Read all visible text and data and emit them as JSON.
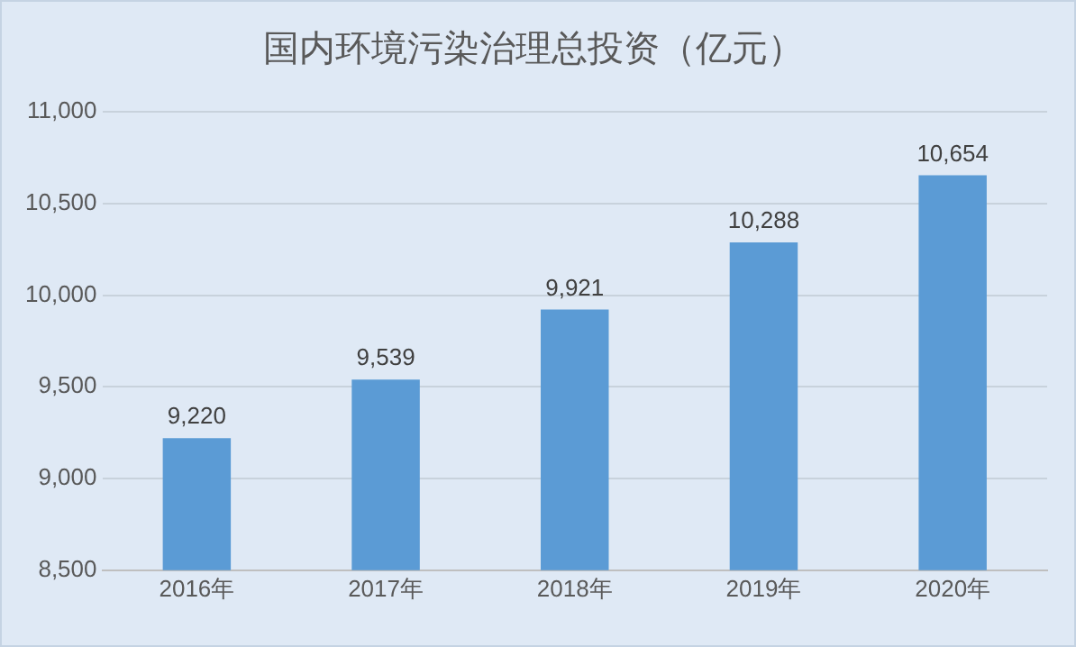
{
  "chart_data": {
    "type": "bar",
    "title": "国内环境污染治理总投资（亿元）",
    "categories": [
      "2016年",
      "2017年",
      "2018年",
      "2019年",
      "2020年"
    ],
    "values": [
      9220,
      9539,
      9921,
      10288,
      10654
    ],
    "value_labels": [
      "9,220",
      "9,539",
      "9,921",
      "10,288",
      "10,654"
    ],
    "color": "#5b9bd5",
    "ylim": [
      8500,
      11000
    ],
    "yticks": [
      {
        "value": 8500,
        "label": "8,500"
      },
      {
        "value": 9000,
        "label": "9,000"
      },
      {
        "value": 9500,
        "label": "9,500"
      },
      {
        "value": 10000,
        "label": "10,000"
      },
      {
        "value": 10500,
        "label": "10,500"
      },
      {
        "value": 11000,
        "label": "11,000"
      }
    ],
    "grid": "y",
    "legend": false
  }
}
